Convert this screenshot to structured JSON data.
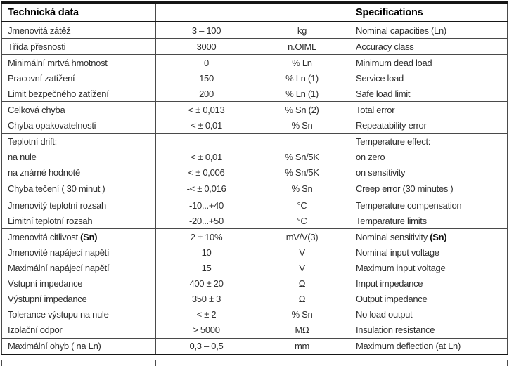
{
  "table": {
    "header": {
      "czech": "Technická data",
      "specs": "Specifications"
    },
    "rows": [
      {
        "label": "Jmenovitá zátěž",
        "value": "3 – 100",
        "unit": "kg",
        "spec": "Nominal capacities (Ln)",
        "group_end": true
      },
      {
        "label": "Třída přesnosti",
        "value": "3000",
        "unit": "n.OIML",
        "spec": "Accuracy class",
        "group_end": true
      },
      {
        "label": "Minimální mrtvá hmotnost",
        "value": "0",
        "unit": "% Ln",
        "spec": "Minimum dead load"
      },
      {
        "label": "Pracovní zatížení",
        "value": "150",
        "unit": "% Ln (1)",
        "spec": "Service load"
      },
      {
        "label": "Limit bezpečného zatížení",
        "value": "200",
        "unit": "% Ln (1)",
        "spec": "Safe load limit",
        "group_end": true
      },
      {
        "label": "Celková chyba",
        "value": "< ± 0,013",
        "unit": "% Sn (2)",
        "spec": "Total error"
      },
      {
        "label": "Chyba opakovatelnosti",
        "value": "< ± 0,01",
        "unit": "% Sn",
        "spec": "Repeatability error",
        "group_end": true
      },
      {
        "label": "Teplotní drift:",
        "value": "",
        "unit": "",
        "spec": "Temperature effect:"
      },
      {
        "label": "na nule",
        "value": "< ± 0,01",
        "unit": "% Sn/5K",
        "spec": "on zero"
      },
      {
        "label": "na známé hodnotě",
        "value": "< ± 0,006",
        "unit": "% Sn/5K",
        "spec": "on sensitivity",
        "group_end": true
      },
      {
        "label": "Chyba tečení ( 30 minut )",
        "value": "-< ± 0,016",
        "unit": "% Sn",
        "spec": "Creep error (30 minutes )",
        "group_end": true
      },
      {
        "label": "Jmenovitý teplotní rozsah",
        "value": "-10...+40",
        "unit": "°C",
        "spec": "Temperature compensation"
      },
      {
        "label": "Limitní teplotní rozsah",
        "value": "-20...+50",
        "unit": "°C",
        "spec": "Temparature limits",
        "group_end": true
      },
      {
        "label": "Jmenovitá citlivost ",
        "label_bold": "(Sn)",
        "value": "2 ± 10%",
        "unit": "mV/V(3)",
        "spec": "Nominal sensitivity ",
        "spec_bold": "(Sn)"
      },
      {
        "label": "Jmenovité napájecí napětí",
        "value": "10",
        "unit": "V",
        "spec": "Nominal input voltage"
      },
      {
        "label": "Maximální napájecí napětí",
        "value": "15",
        "unit": "V",
        "spec": "Maximum input voltage"
      },
      {
        "label": "Vstupní impedance",
        "value": "400 ± 20",
        "unit": "Ω",
        "spec": "Imput impedance"
      },
      {
        "label": "Výstupní impedance",
        "value": "350 ± 3",
        "unit": "Ω",
        "spec": "Output impedance"
      },
      {
        "label": "Tolerance výstupu na nule",
        "value": "< ± 2",
        "unit": "% Sn",
        "spec": "No load output"
      },
      {
        "label": "Izolační odpor",
        "value": "> 5000",
        "unit": "MΩ",
        "spec": "Insulation resistance",
        "group_end": true
      },
      {
        "label": "Maximální ohyb ( na Ln)",
        "value": "0,3 – 0,5",
        "unit": "mm",
        "spec": "Maximum deflection (at Ln)",
        "table_end": true
      }
    ],
    "colors": {
      "thick_border": "#161616",
      "thin_border": "#4a4a4a",
      "text": "#2e2e2e"
    }
  }
}
